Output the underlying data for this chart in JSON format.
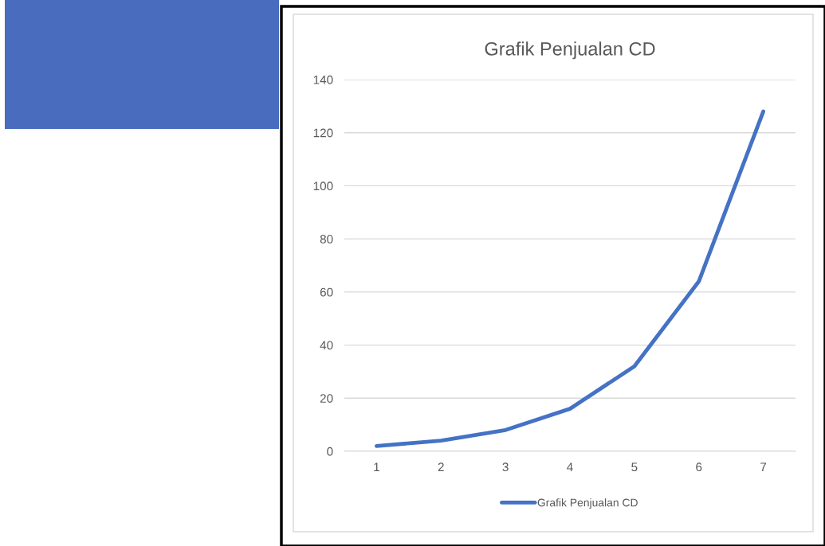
{
  "chart_data": {
    "type": "line",
    "title": "Grafik Penjualan CD",
    "categories": [
      "1",
      "2",
      "3",
      "4",
      "5",
      "6",
      "7"
    ],
    "series": [
      {
        "name": "Grafik Penjualan CD",
        "color": "#4472c4",
        "values": [
          2,
          4,
          8,
          16,
          32,
          64,
          128
        ]
      }
    ],
    "ylim": [
      0,
      140
    ],
    "yticks": [
      0,
      20,
      40,
      60,
      80,
      100,
      120,
      140
    ],
    "grid": "y",
    "legend": "bottom",
    "marker": "none",
    "line_style": "solid"
  }
}
